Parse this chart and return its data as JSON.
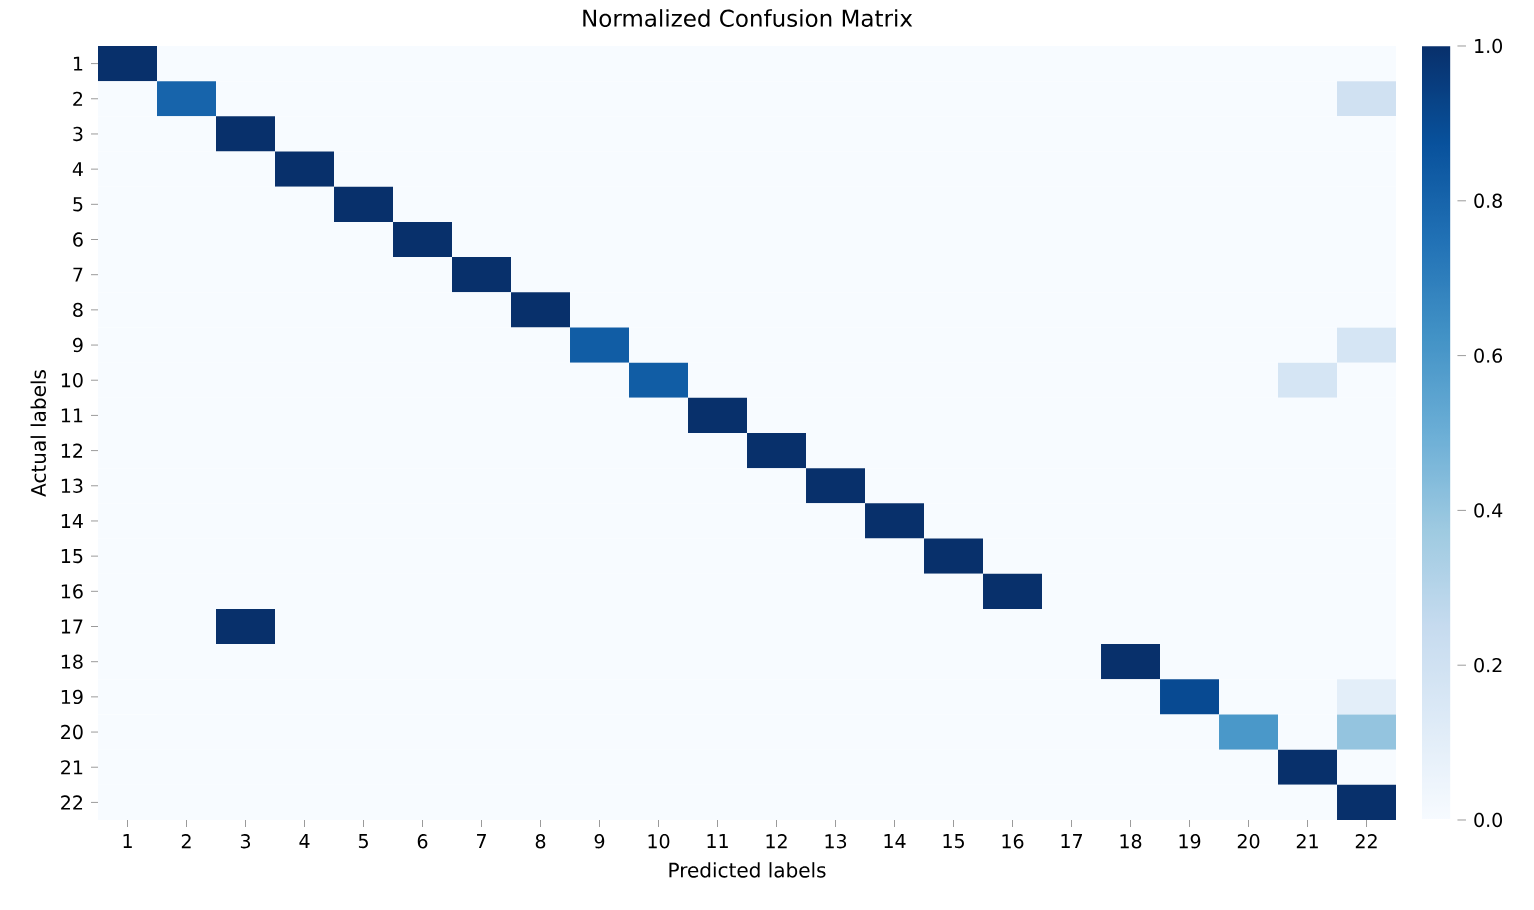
{
  "chart_data": {
    "type": "heatmap",
    "title": "Normalized Confusion Matrix",
    "xlabel": "Predicted labels",
    "ylabel": "Actual labels",
    "categories": [
      "1",
      "2",
      "3",
      "4",
      "5",
      "6",
      "7",
      "8",
      "9",
      "10",
      "11",
      "12",
      "13",
      "14",
      "15",
      "16",
      "17",
      "18",
      "19",
      "20",
      "21",
      "22"
    ],
    "y_categories": [
      "1",
      "2",
      "3",
      "4",
      "5",
      "6",
      "7",
      "8",
      "9",
      "10",
      "11",
      "12",
      "13",
      "14",
      "15",
      "16",
      "17",
      "18",
      "19",
      "20",
      "21",
      "22"
    ],
    "cells": [
      [
        1,
        0,
        0,
        0,
        0,
        0,
        0,
        0,
        0,
        0,
        0,
        0,
        0,
        0,
        0,
        0,
        0,
        0,
        0,
        0,
        0,
        0
      ],
      [
        0,
        0.8,
        0,
        0,
        0,
        0,
        0,
        0,
        0,
        0,
        0,
        0,
        0,
        0,
        0,
        0,
        0,
        0,
        0,
        0,
        0,
        0.2
      ],
      [
        0,
        0,
        1,
        0,
        0,
        0,
        0,
        0,
        0,
        0,
        0,
        0,
        0,
        0,
        0,
        0,
        0,
        0,
        0,
        0,
        0,
        0
      ],
      [
        0,
        0,
        0,
        1,
        0,
        0,
        0,
        0,
        0,
        0,
        0,
        0,
        0,
        0,
        0,
        0,
        0,
        0,
        0,
        0,
        0,
        0
      ],
      [
        0,
        0,
        0,
        0,
        1,
        0,
        0,
        0,
        0,
        0,
        0,
        0,
        0,
        0,
        0,
        0,
        0,
        0,
        0,
        0,
        0,
        0
      ],
      [
        0,
        0,
        0,
        0,
        0,
        1,
        0,
        0,
        0,
        0,
        0,
        0,
        0,
        0,
        0,
        0,
        0,
        0,
        0,
        0,
        0,
        0
      ],
      [
        0,
        0,
        0,
        0,
        0,
        0,
        1,
        0,
        0,
        0,
        0,
        0,
        0,
        0,
        0,
        0,
        0,
        0,
        0,
        0,
        0,
        0
      ],
      [
        0,
        0,
        0,
        0,
        0,
        0,
        0,
        1,
        0,
        0,
        0,
        0,
        0,
        0,
        0,
        0,
        0,
        0,
        0,
        0,
        0,
        0
      ],
      [
        0,
        0,
        0,
        0,
        0,
        0,
        0,
        0,
        0.83,
        0,
        0,
        0,
        0,
        0,
        0,
        0,
        0,
        0,
        0,
        0,
        0,
        0.17
      ],
      [
        0,
        0,
        0,
        0,
        0,
        0,
        0,
        0,
        0,
        0.83,
        0,
        0,
        0,
        0,
        0,
        0,
        0,
        0,
        0,
        0,
        0.17,
        0
      ],
      [
        0,
        0,
        0,
        0,
        0,
        0,
        0,
        0,
        0,
        0,
        1,
        0,
        0,
        0,
        0,
        0,
        0,
        0,
        0,
        0,
        0,
        0
      ],
      [
        0,
        0,
        0,
        0,
        0,
        0,
        0,
        0,
        0,
        0,
        0,
        1,
        0,
        0,
        0,
        0,
        0,
        0,
        0,
        0,
        0,
        0
      ],
      [
        0,
        0,
        0,
        0,
        0,
        0,
        0,
        0,
        0,
        0,
        0,
        0,
        1,
        0,
        0,
        0,
        0,
        0,
        0,
        0,
        0,
        0
      ],
      [
        0,
        0,
        0,
        0,
        0,
        0,
        0,
        0,
        0,
        0,
        0,
        0,
        0,
        1,
        0,
        0,
        0,
        0,
        0,
        0,
        0,
        0
      ],
      [
        0,
        0,
        0,
        0,
        0,
        0,
        0,
        0,
        0,
        0,
        0,
        0,
        0,
        0,
        1,
        0,
        0,
        0,
        0,
        0,
        0,
        0
      ],
      [
        0,
        0,
        0,
        0,
        0,
        0,
        0,
        0,
        0,
        0,
        0,
        0,
        0,
        0,
        0,
        1,
        0,
        0,
        0,
        0,
        0,
        0
      ],
      [
        0,
        0,
        1,
        0,
        0,
        0,
        0,
        0,
        0,
        0,
        0,
        0,
        0,
        0,
        0,
        0,
        0,
        0,
        0,
        0,
        0,
        0
      ],
      [
        0,
        0,
        0,
        0,
        0,
        0,
        0,
        0,
        0,
        0,
        0,
        0,
        0,
        0,
        0,
        0,
        0,
        1,
        0,
        0,
        0,
        0
      ],
      [
        0,
        0,
        0,
        0,
        0,
        0,
        0,
        0,
        0,
        0,
        0,
        0,
        0,
        0,
        0,
        0,
        0,
        0,
        0.9,
        0,
        0,
        0.1
      ],
      [
        0,
        0,
        0,
        0,
        0,
        0,
        0,
        0,
        0,
        0,
        0,
        0,
        0,
        0,
        0,
        0,
        0,
        0,
        0,
        0.6,
        0,
        0.4
      ],
      [
        0,
        0,
        0,
        0,
        0,
        0,
        0,
        0,
        0,
        0,
        0,
        0,
        0,
        0,
        0,
        0,
        0,
        0,
        0,
        0,
        1,
        0
      ],
      [
        0,
        0,
        0,
        0,
        0,
        0,
        0,
        0,
        0,
        0,
        0,
        0,
        0,
        0,
        0,
        0,
        0,
        0,
        0,
        0,
        0,
        1
      ]
    ],
    "clim": [
      0,
      1
    ],
    "cticks": [
      {
        "value": 0,
        "label": "0.0"
      },
      {
        "value": 0.2,
        "label": "0.2"
      },
      {
        "value": 0.4,
        "label": "0.4"
      },
      {
        "value": 0.6,
        "label": "0.6"
      },
      {
        "value": 0.8,
        "label": "0.8"
      },
      {
        "value": 1,
        "label": "1.0"
      }
    ]
  }
}
